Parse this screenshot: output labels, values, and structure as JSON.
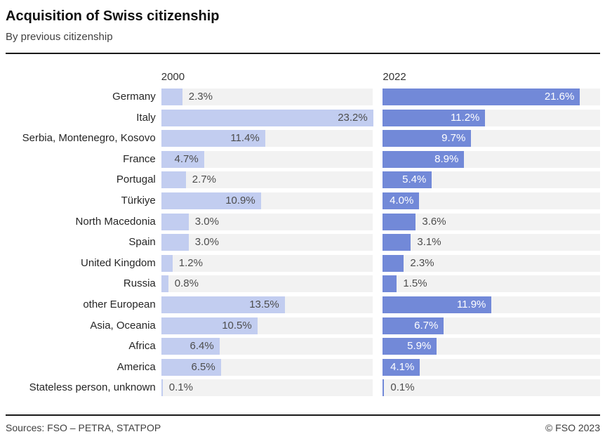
{
  "header": {
    "title": "Acquisition of Swiss citizenship",
    "subtitle": "By previous citizenship"
  },
  "chart_data": {
    "type": "bar",
    "orientation": "horizontal",
    "title": "Acquisition of Swiss citizenship",
    "subtitle": "By previous citizenship",
    "categories": [
      "Germany",
      "Italy",
      "Serbia, Montenegro, Kosovo",
      "France",
      "Portugal",
      "Türkiye",
      "North Macedonia",
      "Spain",
      "United Kingdom",
      "Russia",
      "other European",
      "Asia, Oceania",
      "Africa",
      "America",
      "Stateless person, unknown"
    ],
    "series": [
      {
        "name": "2000",
        "values": [
          2.3,
          23.2,
          11.4,
          4.7,
          2.7,
          10.9,
          3.0,
          3.0,
          1.2,
          0.8,
          13.5,
          10.5,
          6.4,
          6.5,
          0.1
        ]
      },
      {
        "name": "2022",
        "values": [
          21.6,
          11.2,
          9.7,
          8.9,
          5.4,
          4.0,
          3.6,
          3.1,
          2.3,
          1.5,
          11.9,
          6.7,
          5.9,
          4.1,
          0.1
        ]
      }
    ],
    "value_suffix": "%",
    "xlim": [
      0,
      23.2
    ],
    "grid": false,
    "legend_position": "column-headers-top",
    "label_inside_threshold": 4.0,
    "colors": {
      "bar_2000": "#c2cdf0",
      "bar_2022": "#7289d8",
      "track": "#f2f2f2",
      "value_text": "#4d4d4d",
      "value_on_dark": "#ffffff"
    }
  },
  "footer": {
    "sources": "Sources: FSO – PETRA, STATPOP",
    "copyright": "© FSO 2023"
  }
}
